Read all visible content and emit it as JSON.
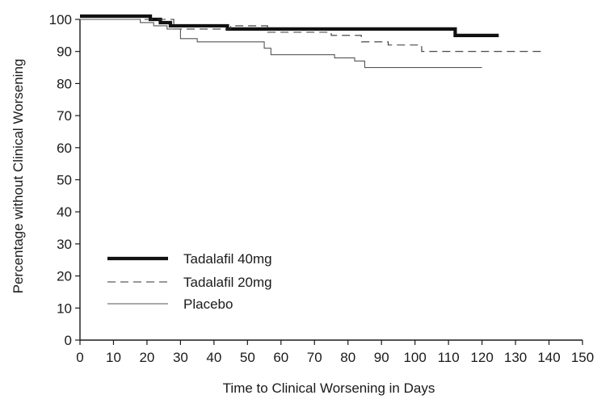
{
  "chart_data": {
    "type": "line",
    "style": "step",
    "xlabel": "Time to Clinical Worsening in Days",
    "ylabel": "Percentage without Clinical Worsening",
    "xlim": [
      0,
      150
    ],
    "ylim": [
      0,
      100
    ],
    "xticks": [
      0,
      10,
      20,
      30,
      40,
      50,
      60,
      70,
      80,
      90,
      100,
      110,
      120,
      130,
      140,
      150
    ],
    "yticks": [
      0,
      10,
      20,
      30,
      40,
      50,
      60,
      70,
      80,
      90,
      100
    ],
    "grid": false,
    "legend_position": "bottom-left",
    "series": [
      {
        "name": "Tadalafil 40mg",
        "color": "#111111",
        "line": "thick-solid",
        "x": [
          0,
          21,
          24,
          27,
          44,
          56,
          112,
          125
        ],
        "y": [
          101,
          100,
          99,
          98,
          97,
          97,
          95,
          95
        ]
      },
      {
        "name": "Tadalafil 20mg",
        "color": "#333333",
        "line": "dashed",
        "x": [
          0,
          7,
          21,
          28,
          45,
          56,
          75,
          84,
          92,
          102,
          138
        ],
        "y": [
          100,
          100,
          100,
          97,
          98,
          96,
          95,
          93,
          92,
          90,
          90
        ]
      },
      {
        "name": "Placebo",
        "color": "#555555",
        "line": "thin-solid",
        "x": [
          0,
          18,
          22,
          26,
          30,
          35,
          50,
          55,
          57,
          70,
          76,
          82,
          85,
          120
        ],
        "y": [
          100,
          99,
          98,
          97,
          94,
          93,
          93,
          91,
          89,
          89,
          88,
          87,
          85,
          85
        ]
      }
    ]
  }
}
